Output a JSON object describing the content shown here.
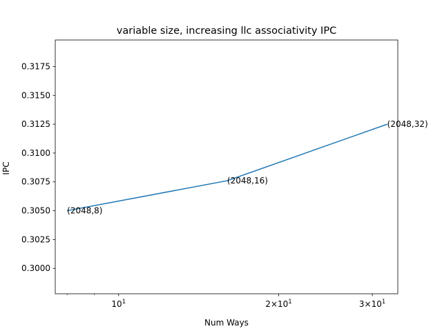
{
  "chart_data": {
    "type": "line",
    "title": "variable size, increasing llc associativity IPC",
    "xlabel": "Num Ways",
    "ylabel": "IPC",
    "xscale": "log",
    "xlim": [
      7.6,
      33.5
    ],
    "ylim": [
      0.2978,
      0.3198
    ],
    "grid": false,
    "x_ticks": [
      {
        "value": 10,
        "base": "10",
        "exp": "1",
        "coef": ""
      },
      {
        "value": 20,
        "base": "10",
        "exp": "1",
        "coef": "2×"
      },
      {
        "value": 30,
        "base": "10",
        "exp": "1",
        "coef": "3×"
      }
    ],
    "x_minor_ticks": [
      8,
      9,
      40
    ],
    "y_ticks": [
      {
        "value": 0.3,
        "label": "0.3000"
      },
      {
        "value": 0.3025,
        "label": "0.3025"
      },
      {
        "value": 0.305,
        "label": "0.3050"
      },
      {
        "value": 0.3075,
        "label": "0.3075"
      },
      {
        "value": 0.31,
        "label": "0.3100"
      },
      {
        "value": 0.3125,
        "label": "0.3125"
      },
      {
        "value": 0.315,
        "label": "0.3150"
      },
      {
        "value": 0.3175,
        "label": "0.3175"
      }
    ],
    "series": [
      {
        "color": "#1f77b4",
        "points": [
          {
            "x": 8,
            "y": 0.305,
            "label": "(2048,8)"
          },
          {
            "x": 16,
            "y": 0.3076,
            "label": "(2048,16)"
          },
          {
            "x": 32,
            "y": 0.3125,
            "label": "(2048,32)"
          }
        ]
      }
    ]
  }
}
